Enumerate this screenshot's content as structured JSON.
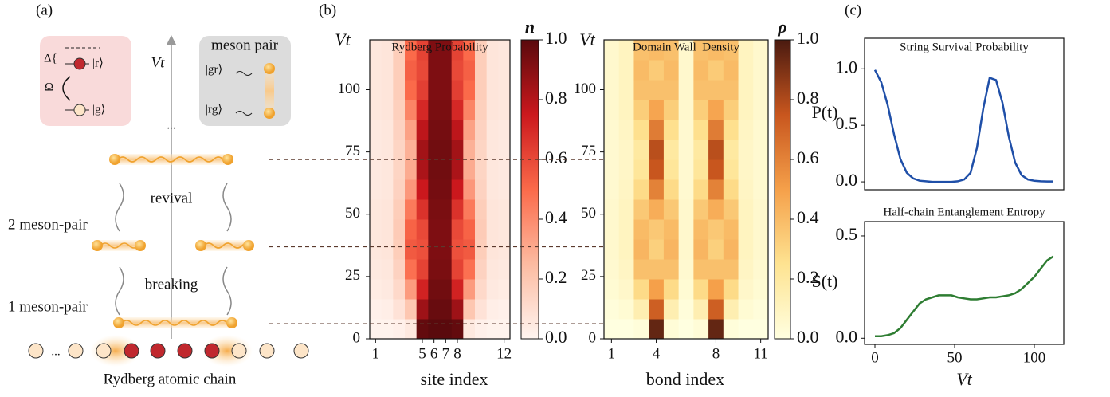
{
  "panel_labels": [
    "(a)",
    "(b)",
    "(c)"
  ],
  "diagram": {
    "delta": "Δ{",
    "r_state": "|r⟩",
    "g_state": "|g⟩",
    "omega": "Ω",
    "time_axis": "Vt",
    "dots": "...",
    "meson_pair": "meson pair",
    "gr_state": "|gr⟩",
    "rg_state": "|rg⟩",
    "revival": "revival",
    "two_meson": "2 meson-pair",
    "breaking": "breaking",
    "one_meson": "1 meson-pair",
    "chain_dots": "...",
    "chain_label": "Rydberg atomic chain"
  },
  "chart_data": [
    {
      "type": "heatmap",
      "title": "Rydberg Probability",
      "x_label": "site index",
      "y_label": "Vt",
      "colorbar_label": "n",
      "x": [
        1,
        2,
        3,
        4,
        5,
        6,
        7,
        8,
        9,
        10,
        11,
        12
      ],
      "xlim": [
        0.5,
        12.5
      ],
      "xticks": [
        1,
        5,
        6,
        7,
        8,
        12
      ],
      "ybins": [
        0,
        8,
        16,
        24,
        32,
        40,
        48,
        56,
        64,
        72,
        80,
        88,
        96,
        104,
        112,
        120
      ],
      "ylim": [
        0,
        120
      ],
      "yticks": [
        0,
        25,
        50,
        75,
        100
      ],
      "values": [
        [
          0.01,
          0.01,
          0.02,
          0.05,
          0.98,
          1,
          1,
          0.98,
          0.05,
          0.02,
          0.01,
          0.01
        ],
        [
          0.02,
          0.03,
          0.08,
          0.2,
          0.85,
          0.97,
          0.97,
          0.85,
          0.2,
          0.08,
          0.03,
          0.02
        ],
        [
          0.04,
          0.05,
          0.12,
          0.35,
          0.72,
          0.95,
          0.95,
          0.72,
          0.35,
          0.12,
          0.05,
          0.04
        ],
        [
          0.05,
          0.06,
          0.15,
          0.48,
          0.62,
          0.93,
          0.93,
          0.62,
          0.48,
          0.15,
          0.06,
          0.05
        ],
        [
          0.06,
          0.07,
          0.17,
          0.55,
          0.58,
          0.92,
          0.92,
          0.58,
          0.55,
          0.17,
          0.07,
          0.06
        ],
        [
          0.06,
          0.07,
          0.18,
          0.52,
          0.6,
          0.92,
          0.92,
          0.6,
          0.52,
          0.18,
          0.07,
          0.06
        ],
        [
          0.06,
          0.07,
          0.17,
          0.45,
          0.67,
          0.93,
          0.93,
          0.67,
          0.45,
          0.17,
          0.07,
          0.06
        ],
        [
          0.05,
          0.06,
          0.15,
          0.36,
          0.75,
          0.94,
          0.94,
          0.75,
          0.36,
          0.15,
          0.06,
          0.05
        ],
        [
          0.05,
          0.06,
          0.14,
          0.3,
          0.82,
          0.95,
          0.95,
          0.82,
          0.3,
          0.14,
          0.06,
          0.05
        ],
        [
          0.05,
          0.06,
          0.14,
          0.28,
          0.84,
          0.95,
          0.95,
          0.84,
          0.28,
          0.14,
          0.06,
          0.05
        ],
        [
          0.05,
          0.06,
          0.15,
          0.33,
          0.78,
          0.94,
          0.94,
          0.78,
          0.33,
          0.15,
          0.06,
          0.05
        ],
        [
          0.06,
          0.07,
          0.16,
          0.42,
          0.7,
          0.93,
          0.93,
          0.7,
          0.42,
          0.16,
          0.07,
          0.06
        ],
        [
          0.06,
          0.07,
          0.17,
          0.5,
          0.63,
          0.92,
          0.92,
          0.63,
          0.5,
          0.17,
          0.07,
          0.06
        ],
        [
          0.06,
          0.07,
          0.17,
          0.53,
          0.6,
          0.92,
          0.92,
          0.6,
          0.53,
          0.17,
          0.07,
          0.06
        ],
        [
          0.06,
          0.07,
          0.17,
          0.5,
          0.62,
          0.92,
          0.92,
          0.62,
          0.5,
          0.17,
          0.07,
          0.06
        ]
      ],
      "clim": [
        0,
        1
      ],
      "cticks": [
        {
          "value": 0,
          "label": "0.0"
        },
        {
          "value": 0.2,
          "label": "0.2"
        },
        {
          "value": 0.4,
          "label": "0.4"
        },
        {
          "value": 0.6,
          "label": "0.6"
        },
        {
          "value": 0.8,
          "label": "0.8"
        },
        {
          "value": 1,
          "label": "1.0"
        }
      ],
      "colormap": [
        "#fff5f0",
        "#fcbba1",
        "#fb6a4a",
        "#cb181d",
        "#5a0a0d"
      ],
      "hlines": [
        6,
        37,
        72
      ],
      "hline_color": "#5b3a2e"
    },
    {
      "type": "heatmap",
      "title": "Domain Wall  Density",
      "x_label": "bond index",
      "y_label": "Vt",
      "colorbar_label": "ρ",
      "x": [
        1,
        2,
        3,
        4,
        5,
        6,
        7,
        8,
        9,
        10,
        11
      ],
      "xlim": [
        0.5,
        11.5
      ],
      "xticks": [
        1,
        4,
        8,
        11
      ],
      "ybins": [
        0,
        8,
        16,
        24,
        32,
        40,
        48,
        56,
        64,
        72,
        80,
        88,
        96,
        104,
        112,
        120
      ],
      "ylim": [
        0,
        120
      ],
      "yticks": [
        0,
        25,
        50,
        75,
        100
      ],
      "values": [
        [
          0,
          0,
          0.02,
          0.95,
          0.03,
          0,
          0.03,
          0.95,
          0.02,
          0,
          0
        ],
        [
          0.02,
          0.04,
          0.15,
          0.72,
          0.15,
          0.02,
          0.15,
          0.72,
          0.15,
          0.04,
          0.02
        ],
        [
          0.04,
          0.07,
          0.28,
          0.5,
          0.28,
          0.04,
          0.28,
          0.5,
          0.28,
          0.07,
          0.04
        ],
        [
          0.05,
          0.09,
          0.38,
          0.38,
          0.38,
          0.05,
          0.38,
          0.38,
          0.38,
          0.09,
          0.05
        ],
        [
          0.06,
          0.1,
          0.42,
          0.32,
          0.42,
          0.06,
          0.42,
          0.32,
          0.42,
          0.1,
          0.06
        ],
        [
          0.06,
          0.1,
          0.4,
          0.35,
          0.4,
          0.06,
          0.4,
          0.35,
          0.4,
          0.1,
          0.06
        ],
        [
          0.06,
          0.1,
          0.35,
          0.45,
          0.35,
          0.06,
          0.35,
          0.45,
          0.35,
          0.1,
          0.06
        ],
        [
          0.05,
          0.09,
          0.28,
          0.6,
          0.28,
          0.05,
          0.28,
          0.6,
          0.28,
          0.09,
          0.05
        ],
        [
          0.05,
          0.08,
          0.22,
          0.75,
          0.22,
          0.05,
          0.22,
          0.75,
          0.22,
          0.08,
          0.05
        ],
        [
          0.05,
          0.08,
          0.2,
          0.78,
          0.2,
          0.05,
          0.2,
          0.78,
          0.2,
          0.08,
          0.05
        ],
        [
          0.05,
          0.09,
          0.26,
          0.62,
          0.26,
          0.05,
          0.26,
          0.62,
          0.26,
          0.09,
          0.05
        ],
        [
          0.06,
          0.1,
          0.33,
          0.48,
          0.33,
          0.06,
          0.33,
          0.48,
          0.33,
          0.1,
          0.06
        ],
        [
          0.06,
          0.1,
          0.38,
          0.38,
          0.38,
          0.06,
          0.38,
          0.38,
          0.38,
          0.1,
          0.06
        ],
        [
          0.06,
          0.1,
          0.4,
          0.34,
          0.4,
          0.06,
          0.4,
          0.34,
          0.4,
          0.1,
          0.06
        ],
        [
          0.06,
          0.1,
          0.38,
          0.4,
          0.38,
          0.06,
          0.38,
          0.4,
          0.38,
          0.1,
          0.06
        ]
      ],
      "clim": [
        0,
        1
      ],
      "cticks": [
        {
          "value": 0,
          "label": "0.0"
        },
        {
          "value": 0.2,
          "label": "0.2"
        },
        {
          "value": 0.4,
          "label": "0.4"
        },
        {
          "value": 0.6,
          "label": "0.6"
        },
        {
          "value": 0.8,
          "label": "0.8"
        },
        {
          "value": 1,
          "label": "1.0"
        }
      ],
      "colormap": [
        "#ffffe0",
        "#fee391",
        "#f5a04a",
        "#c8561e",
        "#4a1a10"
      ]
    },
    {
      "type": "line",
      "title": "String Survival Probability",
      "y_label": "P(t)",
      "x": [
        0,
        4,
        8,
        12,
        16,
        20,
        24,
        28,
        32,
        36,
        40,
        44,
        48,
        52,
        56,
        60,
        64,
        68,
        72,
        76,
        80,
        84,
        88,
        92,
        96,
        100,
        104,
        108,
        112
      ],
      "series": [
        {
          "color": "#1f4fa8",
          "values": [
            0.99,
            0.88,
            0.68,
            0.42,
            0.2,
            0.08,
            0.03,
            0.01,
            0.005,
            0,
            0,
            0,
            0,
            0.005,
            0.02,
            0.08,
            0.3,
            0.65,
            0.92,
            0.9,
            0.7,
            0.4,
            0.17,
            0.06,
            0.02,
            0.01,
            0.005,
            0.003,
            0.003
          ]
        }
      ],
      "xlim": [
        -6.5,
        118.5
      ],
      "ylim": [
        -0.07,
        1.27
      ],
      "yticks": [
        {
          "value": 0,
          "label": "0.0"
        },
        {
          "value": 0.5,
          "label": "0.5"
        },
        {
          "value": 1,
          "label": "1.0"
        }
      ]
    },
    {
      "type": "line",
      "title": "Half-chain Entanglement Entropy",
      "y_label": "S(t)",
      "x_label": "Vt",
      "x": [
        0,
        4,
        8,
        12,
        16,
        20,
        24,
        28,
        32,
        36,
        40,
        44,
        48,
        52,
        56,
        60,
        64,
        68,
        72,
        76,
        80,
        84,
        88,
        92,
        96,
        100,
        104,
        108,
        112
      ],
      "series": [
        {
          "color": "#2e7d32",
          "values": [
            0.01,
            0.01,
            0.015,
            0.025,
            0.05,
            0.09,
            0.13,
            0.17,
            0.19,
            0.2,
            0.21,
            0.21,
            0.21,
            0.2,
            0.195,
            0.19,
            0.19,
            0.195,
            0.2,
            0.2,
            0.205,
            0.21,
            0.22,
            0.24,
            0.27,
            0.3,
            0.34,
            0.38,
            0.4
          ]
        }
      ],
      "xlim": [
        -6.5,
        118.5
      ],
      "ylim": [
        -0.03,
        0.57
      ],
      "xticks": [
        0,
        50,
        100
      ],
      "yticks": [
        {
          "value": 0,
          "label": "0.0"
        },
        {
          "value": 0.5,
          "label": "0.5"
        }
      ]
    }
  ]
}
